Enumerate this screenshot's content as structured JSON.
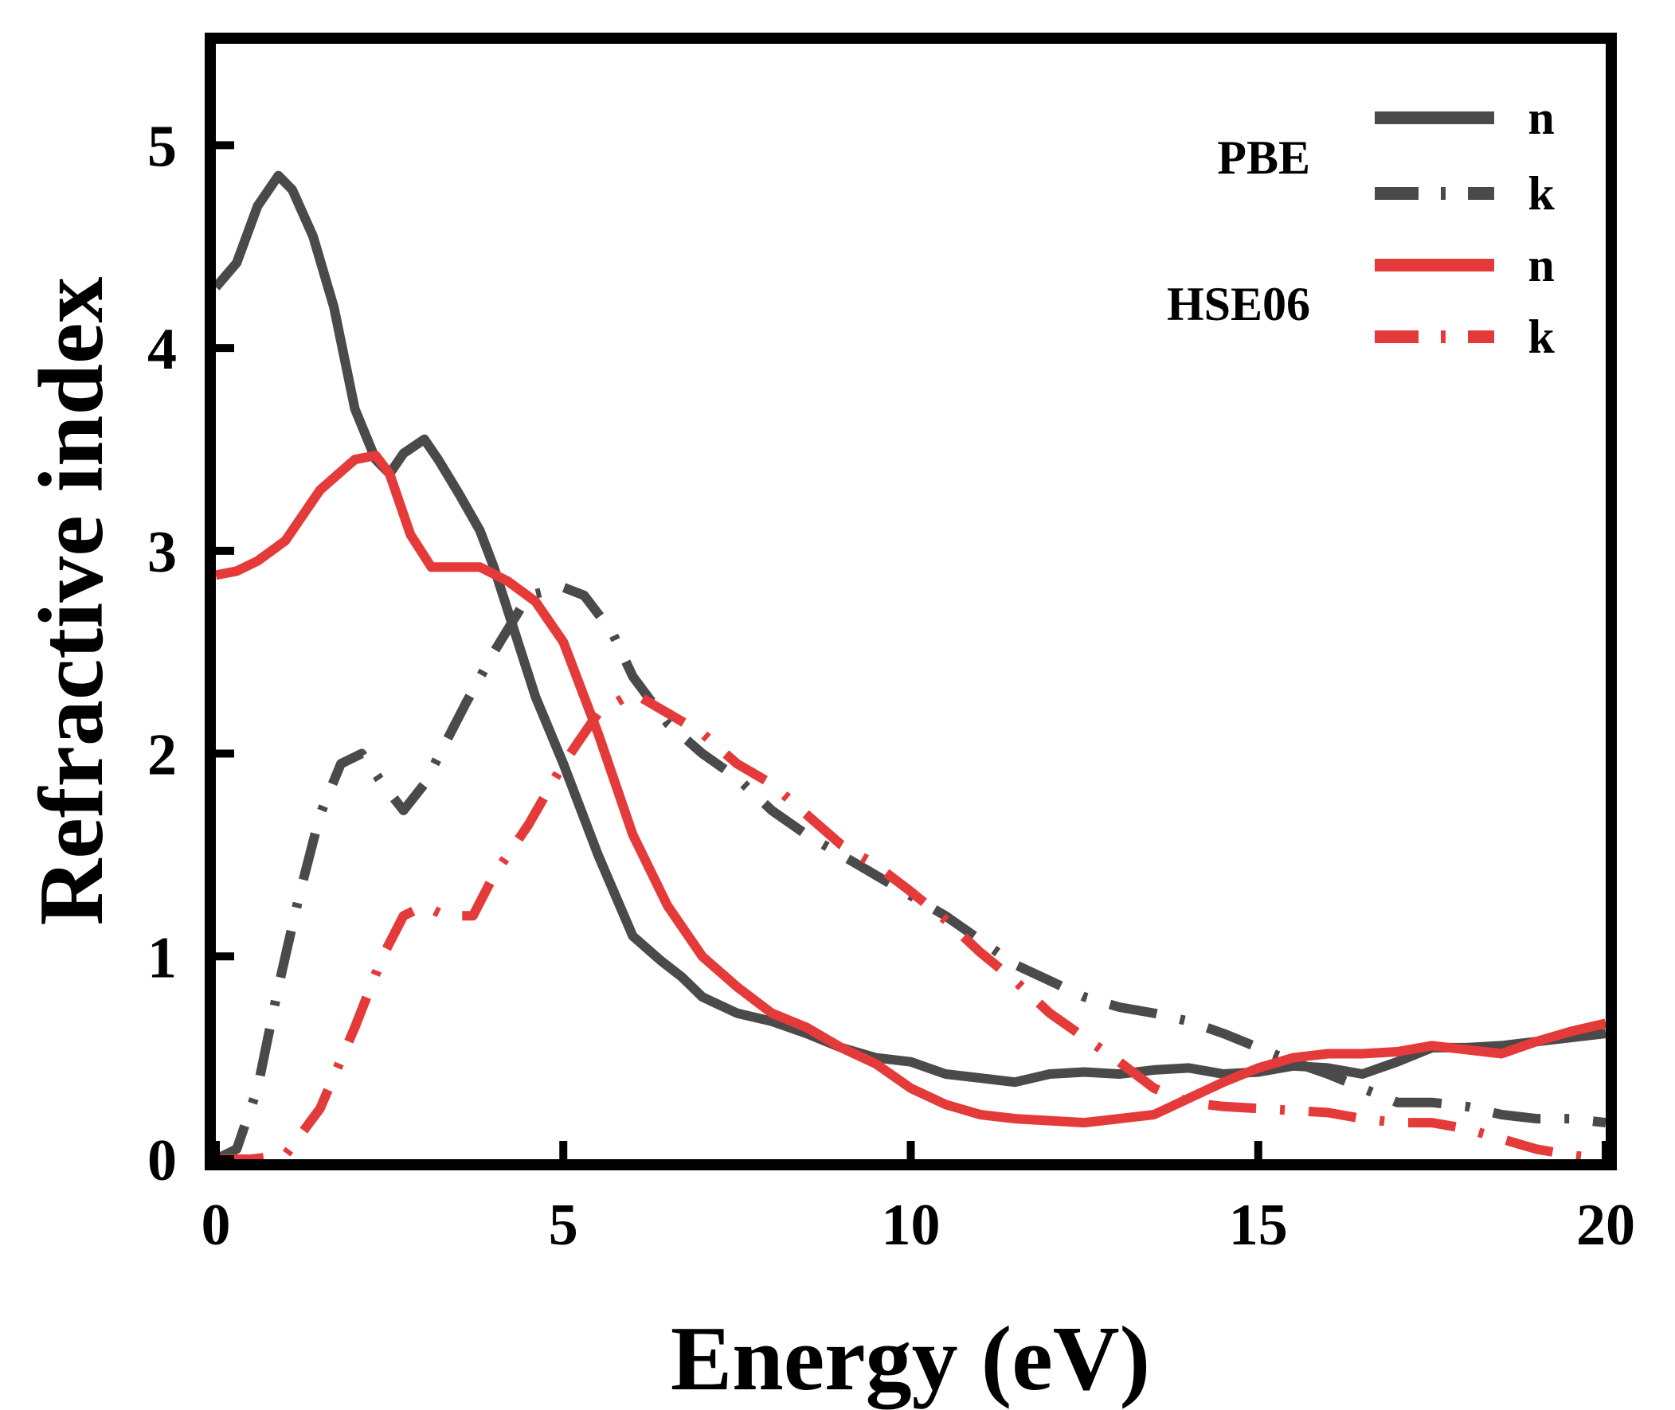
{
  "chart_data": {
    "type": "line",
    "xlabel": "Energy (eV)",
    "ylabel": "Refractive index",
    "xlim": [
      0,
      20
    ],
    "ylim": [
      0,
      5.5
    ],
    "xticks": [
      0,
      5,
      10,
      15,
      20
    ],
    "yticks": [
      0,
      1,
      2,
      3,
      4,
      5
    ],
    "xtick_labels": [
      "0",
      "5",
      "10",
      "15",
      "20"
    ],
    "ytick_labels": [
      "0",
      "1",
      "2",
      "3",
      "4",
      "5"
    ],
    "grid": false,
    "legend_position": "top-right",
    "legend_groups": [
      {
        "label": "PBE",
        "series": [
          0,
          1
        ]
      },
      {
        "label": "HSE06",
        "series": [
          2,
          3
        ]
      }
    ],
    "series": [
      {
        "name": "n",
        "group": "PBE",
        "color": "#4a4a4a",
        "style": "solid",
        "x": [
          0,
          0.3,
          0.6,
          0.9,
          1.1,
          1.4,
          1.7,
          2.0,
          2.3,
          2.5,
          2.7,
          3.0,
          3.2,
          3.5,
          3.8,
          4.0,
          4.3,
          4.6,
          5.0,
          5.5,
          6.0,
          6.4,
          6.7,
          7.0,
          7.5,
          8.0,
          8.5,
          9.0,
          9.5,
          10.0,
          10.5,
          11.0,
          11.5,
          12.0,
          12.5,
          13.0,
          13.5,
          14.0,
          14.5,
          15.0,
          15.5,
          16.0,
          16.5,
          17.0,
          17.5,
          18.0,
          18.5,
          19.0,
          19.5,
          20.0
        ],
        "y": [
          4.3,
          4.42,
          4.7,
          4.85,
          4.78,
          4.55,
          4.2,
          3.7,
          3.45,
          3.38,
          3.48,
          3.55,
          3.45,
          3.28,
          3.1,
          2.92,
          2.6,
          2.28,
          1.95,
          1.5,
          1.1,
          0.98,
          0.9,
          0.8,
          0.72,
          0.68,
          0.62,
          0.55,
          0.5,
          0.48,
          0.42,
          0.4,
          0.38,
          0.42,
          0.43,
          0.42,
          0.44,
          0.45,
          0.42,
          0.43,
          0.46,
          0.45,
          0.42,
          0.48,
          0.55,
          0.55,
          0.56,
          0.58,
          0.6,
          0.62
        ]
      },
      {
        "name": "k",
        "group": "PBE",
        "color": "#4a4a4a",
        "style": "dash-dot",
        "x": [
          0,
          0.3,
          0.6,
          0.9,
          1.2,
          1.5,
          1.8,
          2.1,
          2.4,
          2.7,
          3.0,
          3.3,
          3.6,
          4.0,
          4.5,
          5.0,
          5.3,
          5.7,
          6.0,
          6.5,
          7.0,
          7.5,
          8.0,
          8.5,
          9.0,
          9.5,
          10.0,
          10.5,
          11.0,
          11.5,
          12.0,
          12.5,
          13.0,
          13.5,
          14.0,
          14.5,
          15.0,
          15.5,
          16.0,
          16.5,
          17.0,
          17.5,
          18.0,
          18.5,
          19.0,
          19.5,
          20.0
        ],
        "y": [
          0,
          0.05,
          0.35,
          0.85,
          1.3,
          1.7,
          1.95,
          2.0,
          1.85,
          1.72,
          1.85,
          2.05,
          2.25,
          2.5,
          2.78,
          2.82,
          2.78,
          2.6,
          2.38,
          2.15,
          2.0,
          1.88,
          1.72,
          1.6,
          1.5,
          1.4,
          1.3,
          1.2,
          1.08,
          0.96,
          0.88,
          0.8,
          0.75,
          0.72,
          0.68,
          0.62,
          0.55,
          0.48,
          0.42,
          0.35,
          0.28,
          0.28,
          0.26,
          0.22,
          0.2,
          0.2,
          0.18
        ]
      },
      {
        "name": "n",
        "group": "HSE06",
        "color": "#e53a3a",
        "style": "solid",
        "x": [
          0,
          0.3,
          0.6,
          1.0,
          1.5,
          2.0,
          2.3,
          2.5,
          2.8,
          3.1,
          3.4,
          3.8,
          4.2,
          4.6,
          5.0,
          5.5,
          6.0,
          6.5,
          7.0,
          7.5,
          8.0,
          8.5,
          9.0,
          9.5,
          10.0,
          10.5,
          11.0,
          11.5,
          12.0,
          12.5,
          13.0,
          13.5,
          14.0,
          14.5,
          15.0,
          15.5,
          16.0,
          16.5,
          17.0,
          17.5,
          18.0,
          18.5,
          19.0,
          19.5,
          20.0
        ],
        "y": [
          2.88,
          2.9,
          2.95,
          3.05,
          3.3,
          3.45,
          3.47,
          3.38,
          3.08,
          2.92,
          2.92,
          2.92,
          2.85,
          2.75,
          2.55,
          2.1,
          1.6,
          1.25,
          1.0,
          0.85,
          0.72,
          0.65,
          0.55,
          0.47,
          0.35,
          0.27,
          0.22,
          0.2,
          0.19,
          0.18,
          0.2,
          0.22,
          0.3,
          0.38,
          0.45,
          0.5,
          0.52,
          0.52,
          0.53,
          0.56,
          0.54,
          0.52,
          0.58,
          0.63,
          0.67
        ]
      },
      {
        "name": "k",
        "group": "HSE06",
        "color": "#e53a3a",
        "style": "dash-dot",
        "x": [
          0,
          0.5,
          1.0,
          1.5,
          2.0,
          2.4,
          2.7,
          3.0,
          3.3,
          3.7,
          4.0,
          4.5,
          5.0,
          5.5,
          6.0,
          6.5,
          7.0,
          7.5,
          8.0,
          8.5,
          9.0,
          9.5,
          10.0,
          10.5,
          11.0,
          11.5,
          12.0,
          12.5,
          13.0,
          13.5,
          14.0,
          14.5,
          15.0,
          15.5,
          16.0,
          16.5,
          17.0,
          17.5,
          18.0,
          18.5,
          19.0,
          19.5,
          20.0
        ],
        "y": [
          0,
          0,
          0.02,
          0.25,
          0.65,
          1.0,
          1.2,
          1.25,
          1.2,
          1.2,
          1.4,
          1.65,
          1.95,
          2.2,
          2.3,
          2.2,
          2.1,
          1.95,
          1.85,
          1.7,
          1.55,
          1.45,
          1.32,
          1.18,
          1.02,
          0.88,
          0.72,
          0.6,
          0.48,
          0.35,
          0.28,
          0.26,
          0.25,
          0.24,
          0.23,
          0.2,
          0.18,
          0.18,
          0.15,
          0.1,
          0.05,
          0.02,
          0.0
        ]
      }
    ]
  }
}
